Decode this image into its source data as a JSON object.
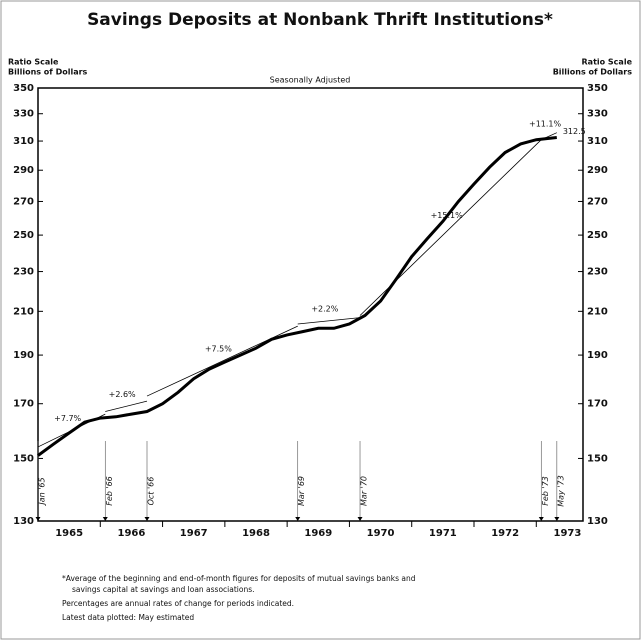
{
  "chart_data": {
    "type": "line",
    "title": "Savings Deposits at Nonbank Thrift Institutions*",
    "subtitle": "Seasonally Adjusted",
    "y_axis_label": [
      "Ratio Scale",
      "Billions of Dollars"
    ],
    "y2_axis_label": [
      "Ratio Scale",
      "Billions of Dollars"
    ],
    "log_scale": true,
    "ylim": [
      130,
      350
    ],
    "yticks": [
      130,
      150,
      170,
      190,
      210,
      230,
      250,
      270,
      290,
      310,
      330,
      350
    ],
    "y2lim": [
      130,
      350
    ],
    "y2ticks": [
      130,
      150,
      170,
      190,
      210,
      230,
      250,
      270,
      290,
      310,
      330,
      350
    ],
    "xlim": [
      1965,
      1973.75
    ],
    "xticks": [
      1966,
      1967,
      1968,
      1969,
      1970,
      1971,
      1972,
      1973
    ],
    "year_labels": [
      "1965",
      "1966",
      "1967",
      "1968",
      "1969",
      "1970",
      "1971",
      "1972",
      "1973"
    ],
    "series": [
      {
        "name": "Savings deposits",
        "color": "#000000",
        "x": [
          1965.0,
          1965.25,
          1965.5,
          1965.75,
          1966.0,
          1966.25,
          1966.5,
          1966.75,
          1967.0,
          1967.25,
          1967.5,
          1967.75,
          1968.0,
          1968.25,
          1968.5,
          1968.75,
          1969.0,
          1969.25,
          1969.5,
          1969.75,
          1970.0,
          1970.25,
          1970.5,
          1970.75,
          1971.0,
          1971.25,
          1971.5,
          1971.75,
          1972.0,
          1972.25,
          1972.5,
          1972.75,
          1973.0,
          1973.33
        ],
        "values": [
          151,
          155,
          159,
          163,
          164.5,
          165,
          166,
          167,
          170,
          174.5,
          180,
          184,
          187,
          190,
          193,
          197,
          199,
          200.5,
          202,
          202,
          204,
          208,
          215,
          226,
          238,
          248,
          258,
          270,
          281,
          292,
          302,
          308,
          311,
          312.5
        ]
      }
    ],
    "end_label": 312.5,
    "trends": [
      {
        "label": "+7.7%",
        "x": [
          1965.0,
          1966.08
        ],
        "values": [
          154,
          166
        ]
      },
      {
        "label": "+2.6%",
        "x": [
          1966.08,
          1966.75
        ],
        "values": [
          167,
          171
        ]
      },
      {
        "label": "+7.5%",
        "x": [
          1966.75,
          1969.17
        ],
        "values": [
          173,
          203
        ]
      },
      {
        "label": "+2.2%",
        "x": [
          1969.17,
          1970.17
        ],
        "values": [
          204,
          207
        ]
      },
      {
        "label": "+15.1%",
        "x": [
          1970.17,
          1973.08
        ],
        "values": [
          208,
          311
        ]
      },
      {
        "label": "+11.1%",
        "x": [
          1973.08,
          1973.33
        ],
        "values": [
          311,
          316
        ]
      }
    ],
    "events": [
      {
        "label": "Jan '65",
        "x": 1965.0
      },
      {
        "label": "Feb '66",
        "x": 1966.08
      },
      {
        "label": "Oct '66",
        "x": 1966.75
      },
      {
        "label": "Mar '69",
        "x": 1969.17
      },
      {
        "label": "Mar '70",
        "x": 1970.17
      },
      {
        "label": "Feb '73",
        "x": 1973.08
      },
      {
        "label": "May '73",
        "x": 1973.33
      }
    ],
    "footnotes": [
      "*Average of the beginning and end-of-month figures for deposits of mutual savings banks and",
      "savings capital at savings and loan associations.",
      "Percentages are annual rates of change for periods indicated.",
      "Latest data plotted: May estimated"
    ]
  }
}
